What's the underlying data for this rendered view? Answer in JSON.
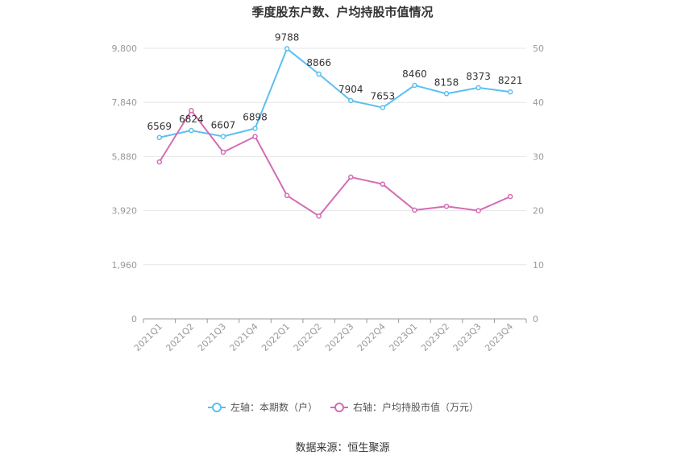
{
  "chart_data": {
    "type": "line",
    "title": "季度股东户数、户均持股市值情况",
    "categories": [
      "2021Q1",
      "2021Q2",
      "2021Q3",
      "2021Q4",
      "2022Q1",
      "2022Q2",
      "2022Q3",
      "2022Q4",
      "2023Q1",
      "2023Q2",
      "2023Q3",
      "2023Q4"
    ],
    "left_axis": {
      "ticks": [
        "0",
        "1,960",
        "3,920",
        "5,880",
        "7,840",
        "9,800"
      ],
      "range": [
        0,
        9800
      ]
    },
    "right_axis": {
      "ticks": [
        "0",
        "10",
        "20",
        "30",
        "40",
        "50"
      ],
      "range": [
        0,
        50
      ]
    },
    "series": [
      {
        "name": "左轴：本期数（户）",
        "axis": "left",
        "color": "#5bc0f0",
        "values": [
          6569,
          6824,
          6607,
          6898,
          9788,
          8866,
          7904,
          7653,
          8460,
          8158,
          8373,
          8221
        ],
        "labels": [
          "6569",
          "6824",
          "6607",
          "6898",
          "9788",
          "8866",
          "7904",
          "7653",
          "8460",
          "8158",
          "8373",
          "8221"
        ]
      },
      {
        "name": "右轴：户均持股市值（万元）",
        "axis": "right",
        "color": "#d46cb4",
        "values": [
          29.0,
          38.5,
          30.8,
          33.7,
          22.8,
          19.0,
          26.2,
          24.9,
          20.1,
          20.8,
          20.0,
          22.6
        ]
      }
    ],
    "grid": true,
    "legend_position": "bottom"
  },
  "footer": {
    "source": "数据来源：恒生聚源"
  }
}
